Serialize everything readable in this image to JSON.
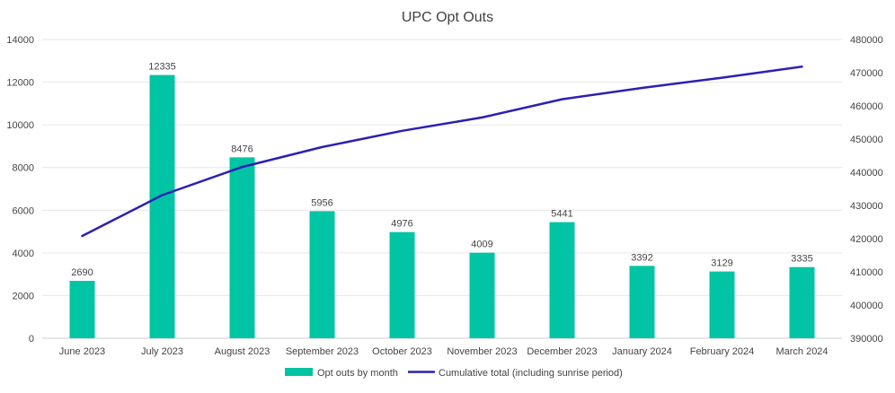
{
  "chart_data": {
    "type": "bar+line",
    "title": "UPC Opt Outs",
    "categories": [
      "June 2023",
      "July 2023",
      "August 2023",
      "September 2023",
      "October 2023",
      "November 2023",
      "December 2023",
      "January 2024",
      "February 2024",
      "March 2024"
    ],
    "series": [
      {
        "name": "Opt outs by month",
        "type": "bar",
        "axis": "left",
        "values": [
          2690,
          12335,
          8476,
          5956,
          4976,
          4009,
          5441,
          3392,
          3129,
          3335
        ],
        "labels": [
          "2690",
          "12335",
          "8476",
          "5956",
          "4976",
          "4009",
          "5441",
          "3392",
          "3129",
          "3335"
        ]
      },
      {
        "name": "Cumulative total (including sunrise period)",
        "type": "line",
        "axis": "right",
        "values": [
          420800,
          433100,
          441600,
          447600,
          452500,
          456500,
          462000,
          465400,
          468500,
          471800
        ]
      }
    ],
    "y_left": {
      "min": 0,
      "max": 14000,
      "ticks": [
        "0",
        "2000",
        "4000",
        "6000",
        "8000",
        "10000",
        "12000",
        "14000"
      ]
    },
    "y_right": {
      "min": 390000,
      "max": 480000,
      "ticks": [
        "390000",
        "400000",
        "410000",
        "420000",
        "430000",
        "440000",
        "450000",
        "460000",
        "470000",
        "480000"
      ]
    },
    "legend_position": "bottom",
    "grid": true,
    "colors": {
      "bar": "#00c4a4",
      "line": "#2a20b5",
      "grid": "#e6e6e6",
      "text": "#444444",
      "title": "#404040"
    }
  }
}
